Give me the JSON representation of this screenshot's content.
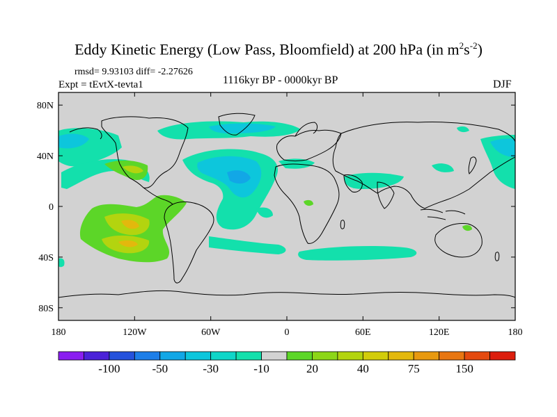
{
  "title": {
    "main": "Eddy Kinetic Energy (Low Pass, Bloomfield) at 200 hPa (in m",
    "sup1": "2",
    "mid": "s",
    "sup2": "-2",
    "end": ")"
  },
  "stats": "rmsd= 9.93103 diff= -2.27626",
  "experiment": "Expt = tEvtX-tevta1",
  "period": "1116kyr BP - 0000kyr BP",
  "season": "DJF",
  "x_ticks": [
    "180",
    "120W",
    "60W",
    "0",
    "60E",
    "120E",
    "180"
  ],
  "y_ticks": [
    "80N",
    "40N",
    "0",
    "40S",
    "80S"
  ],
  "colorbar": {
    "colors": [
      "#8a1ef0",
      "#4b22d8",
      "#2552dc",
      "#1d7ee8",
      "#12a7e6",
      "#0dc6dc",
      "#0fd6c8",
      "#13e0ac",
      "#d2d2d2",
      "#5cd628",
      "#8cd617",
      "#b3d40f",
      "#d2cc0a",
      "#e3b80d",
      "#e8990f",
      "#e87612",
      "#e44a0f",
      "#dc1e0d"
    ],
    "labels": [
      "-100",
      "-50",
      "-30",
      "-10",
      "20",
      "40",
      "75",
      "150"
    ]
  },
  "colors": {
    "land_background": "#d2d2d2",
    "teal": "#13e0ac",
    "cyan": "#0dc6dc",
    "light_blue": "#12a7e6",
    "green": "#5cd628",
    "yellow_green": "#b3d40f",
    "orange": "#e3b80d"
  }
}
